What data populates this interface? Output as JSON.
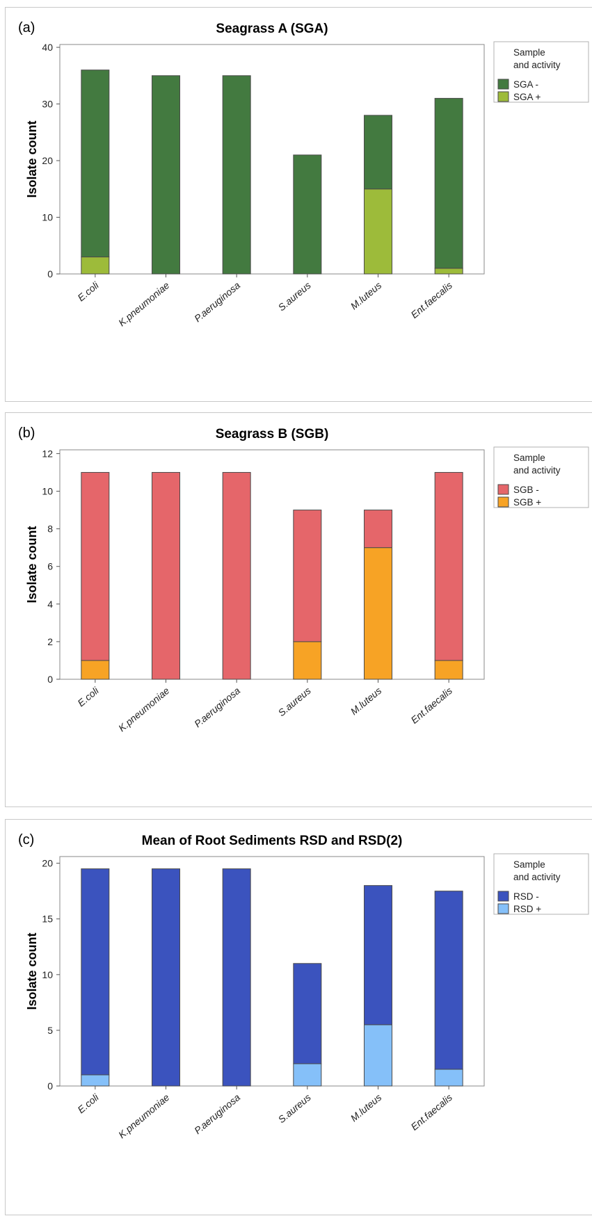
{
  "chart_data": [
    {
      "type": "bar",
      "stacked": true,
      "panel_label": "(a)",
      "title": "Seagrass A (SGA)",
      "ylabel": "Isolate count",
      "xlabel": "",
      "categories": [
        "E.coli",
        "K.pneumoniae",
        "P.aeruginosa",
        "S.aureus",
        "M.luteus",
        "Ent.faecalis"
      ],
      "ylim": [
        0,
        40.5
      ],
      "yticks": [
        0,
        10,
        20,
        30,
        40
      ],
      "series": [
        {
          "name": "SGA +",
          "color": "#9dbb3a",
          "values": [
            3,
            0,
            0,
            0,
            15,
            1
          ]
        },
        {
          "name": "SGA -",
          "color": "#437a40",
          "values": [
            33,
            35,
            35,
            21,
            13,
            30
          ]
        }
      ],
      "legend": {
        "title_lines": [
          "Sample",
          "and activity"
        ],
        "order": [
          "SGA -",
          "SGA +"
        ],
        "position": "right"
      }
    },
    {
      "type": "bar",
      "stacked": true,
      "panel_label": "(b)",
      "title": "Seagrass B (SGB)",
      "ylabel": "Isolate count",
      "xlabel": "",
      "categories": [
        "E.coli",
        "K.pneumoniae",
        "P.aeruginosa",
        "S.aureus",
        "M.luteus",
        "Ent.faecalis"
      ],
      "ylim": [
        0,
        12.2
      ],
      "yticks": [
        0,
        2,
        4,
        6,
        8,
        10,
        12
      ],
      "series": [
        {
          "name": "SGB +",
          "color": "#f7a325",
          "values": [
            1,
            0,
            0,
            2,
            7,
            1
          ]
        },
        {
          "name": "SGB -",
          "color": "#e5666a",
          "values": [
            10,
            11,
            11,
            7,
            2,
            10
          ]
        }
      ],
      "legend": {
        "title_lines": [
          "Sample",
          "and activity"
        ],
        "order": [
          "SGB -",
          "SGB +"
        ],
        "position": "right"
      }
    },
    {
      "type": "bar",
      "stacked": true,
      "panel_label": "(c)",
      "title": "Mean of Root Sediments RSD and RSD(2)",
      "ylabel": "Isolate count",
      "xlabel": "",
      "categories": [
        "E.coli",
        "K.pneumoniae",
        "P.aeruginosa",
        "S.aureus",
        "M.luteus",
        "Ent.faecalis"
      ],
      "ylim": [
        0,
        20.6
      ],
      "yticks": [
        0,
        5,
        10,
        15,
        20
      ],
      "series": [
        {
          "name": "RSD +",
          "color": "#85c0f9",
          "values": [
            1,
            0,
            0,
            2,
            5.5,
            1.5
          ]
        },
        {
          "name": "RSD -",
          "color": "#3b53be",
          "values": [
            18.5,
            19.5,
            19.5,
            9,
            12.5,
            16
          ]
        }
      ],
      "legend": {
        "title_lines": [
          "Sample",
          "and activity"
        ],
        "order": [
          "RSD -",
          "RSD +"
        ],
        "position": "right"
      }
    }
  ]
}
